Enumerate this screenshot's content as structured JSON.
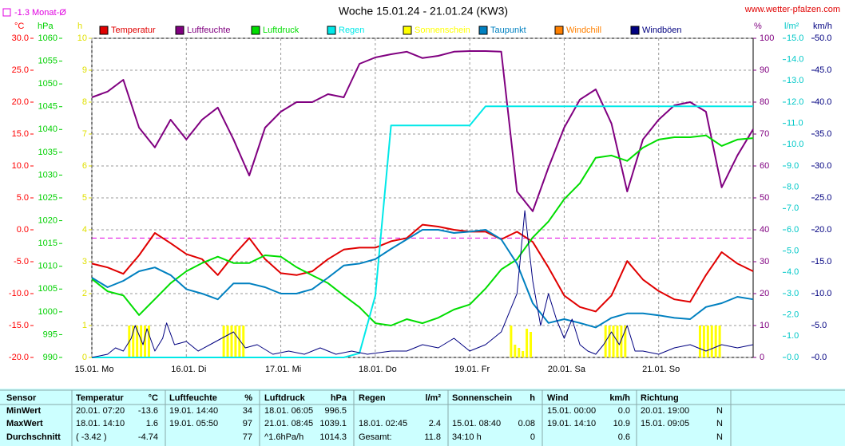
{
  "chart_data": {
    "type": "line",
    "title": "Woche 15.01.24 - 21.01.24 (KW3)",
    "source": "www.wetter-pfalzen.com",
    "grid": true,
    "reference_line": {
      "value": -1.3,
      "label": "-1.3 Monat-Ø",
      "color": "#e000e0"
    },
    "xlim": [
      0,
      168
    ],
    "xticks": [
      {
        "value": 0,
        "label": "15.01. Mo"
      },
      {
        "value": 24,
        "label": "16.01. Di"
      },
      {
        "value": 48,
        "label": "17.01. Mi"
      },
      {
        "value": 72,
        "label": "18.01. Do"
      },
      {
        "value": 96,
        "label": "19.01. Fr"
      },
      {
        "value": 120,
        "label": "20.01. Sa"
      },
      {
        "value": 144,
        "label": "21.01. So"
      }
    ],
    "x": [
      0,
      4,
      8,
      12,
      16,
      20,
      24,
      28,
      32,
      36,
      40,
      44,
      48,
      52,
      56,
      60,
      64,
      68,
      72,
      76,
      80,
      84,
      88,
      92,
      96,
      100,
      104,
      108,
      112,
      116,
      120,
      124,
      128,
      132,
      136,
      140,
      144,
      148,
      152,
      156,
      160,
      164,
      168
    ],
    "ylabel": "°C",
    "ycolor": "#ff0000",
    "ylim": [
      -20,
      30
    ],
    "yticks": [
      {
        "value": 30,
        "label": "30.0"
      },
      {
        "value": 25,
        "label": "25.0"
      },
      {
        "value": 20,
        "label": "20.0"
      },
      {
        "value": 15,
        "label": "15.0"
      },
      {
        "value": 10,
        "label": "10.0"
      },
      {
        "value": 5,
        "label": "5.0"
      },
      {
        "value": 0,
        "label": "0.0"
      },
      {
        "value": -5,
        "label": "-5.0"
      },
      {
        "value": -10,
        "label": "-10.0"
      },
      {
        "value": -15,
        "label": "-15.0"
      },
      {
        "value": -20,
        "label": "-20.0"
      }
    ],
    "y2label": "hPa",
    "y2color": "#00d000",
    "y2lim": [
      990,
      1060
    ],
    "y2ticks": [
      1060,
      1055,
      1050,
      1045,
      1040,
      1035,
      1030,
      1025,
      1020,
      1015,
      1010,
      1005,
      1000,
      995,
      990
    ],
    "y3label": "h",
    "y3color": "#e0e000",
    "y3lim": [
      0,
      10
    ],
    "y3ticks": [
      10,
      9,
      8,
      7,
      6,
      5,
      4,
      3,
      2,
      1,
      0
    ],
    "y4label": "%",
    "y4color": "#800080",
    "y4lim": [
      0,
      100
    ],
    "y4ticks": [
      100,
      90,
      80,
      70,
      60,
      50,
      40,
      30,
      20,
      10,
      0
    ],
    "y5label": "l/m²",
    "y5color": "#00c8c8",
    "y5lim": [
      0,
      15
    ],
    "y5ticks": [
      {
        "value": 15,
        "label": "15.0"
      },
      {
        "value": 14,
        "label": "14.0"
      },
      {
        "value": 13,
        "label": "13.0"
      },
      {
        "value": 12,
        "label": "12.0"
      },
      {
        "value": 11,
        "label": "11.0"
      },
      {
        "value": 10,
        "label": "10.0"
      },
      {
        "value": 9,
        "label": "9.0"
      },
      {
        "value": 8,
        "label": "8.0"
      },
      {
        "value": 7,
        "label": "7.0"
      },
      {
        "value": 6,
        "label": "6.0"
      },
      {
        "value": 5,
        "label": "5.0"
      },
      {
        "value": 4,
        "label": "4.0"
      },
      {
        "value": 3,
        "label": "3.0"
      },
      {
        "value": 2,
        "label": "2.0"
      },
      {
        "value": 1,
        "label": "1.0"
      },
      {
        "value": 0,
        "label": "0.0"
      }
    ],
    "y6label": "km/h",
    "y6color": "#000080",
    "y6lim": [
      0,
      50
    ],
    "y6ticks": [
      {
        "value": 50,
        "label": "50.0"
      },
      {
        "value": 45,
        "label": "45.0"
      },
      {
        "value": 40,
        "label": "40.0"
      },
      {
        "value": 35,
        "label": "35.0"
      },
      {
        "value": 30,
        "label": "30.0"
      },
      {
        "value": 25,
        "label": "25.0"
      },
      {
        "value": 20,
        "label": "20.0"
      },
      {
        "value": 15,
        "label": "15.0"
      },
      {
        "value": 10,
        "label": "10.0"
      },
      {
        "value": 5,
        "label": "5.0"
      },
      {
        "value": 0,
        "label": "0.0"
      }
    ],
    "series": [
      {
        "name": "Temperatur",
        "color": "#e00000",
        "axis": "y",
        "values": [
          -5.3,
          -5.9,
          -6.9,
          -4.0,
          -0.5,
          -2.1,
          -3.8,
          -4.6,
          -7.1,
          -4.0,
          -1.3,
          -4.6,
          -6.8,
          -7.1,
          -6.5,
          -4.6,
          -3.1,
          -2.8,
          -2.8,
          -1.8,
          -1.3,
          0.8,
          0.5,
          0.0,
          -0.3,
          -0.3,
          -1.5,
          -0.3,
          -1.9,
          -5.9,
          -10.3,
          -12.1,
          -12.8,
          -10.3,
          -4.9,
          -7.8,
          -9.6,
          -10.9,
          -11.3,
          -7.1,
          -3.5,
          -5.3,
          -6.5
        ]
      },
      {
        "name": "Luftfeuchte",
        "color": "#800080",
        "axis": "y4",
        "values": [
          81.5,
          83.3,
          87,
          72,
          65.8,
          74.5,
          68.3,
          74.5,
          78.3,
          68.3,
          57,
          72,
          77,
          80,
          80,
          82.5,
          81.5,
          92,
          94,
          95,
          95.8,
          93.8,
          94.5,
          95.8,
          96,
          96,
          95.8,
          52,
          45.8,
          59.5,
          72,
          80.8,
          84,
          73.3,
          52,
          68.3,
          74.5,
          79,
          80,
          77,
          53.3,
          63.3,
          71.5
        ]
      },
      {
        "name": "Luftdruck",
        "color": "#00dd00",
        "axis": "y2",
        "values": [
          1007.2,
          1004.5,
          1003.6,
          999.3,
          1002.8,
          1006.3,
          1008.9,
          1010.7,
          1012.1,
          1010.7,
          1010.7,
          1012.4,
          1012.1,
          1009.8,
          1008.0,
          1006.3,
          1003.6,
          1001.0,
          997.5,
          997.0,
          998.4,
          997.5,
          998.7,
          1000.5,
          1001.6,
          1005.1,
          1009.3,
          1011.5,
          1016.3,
          1019.8,
          1024.7,
          1028.2,
          1033.8,
          1034.3,
          1033.1,
          1036.0,
          1037.8,
          1038.3,
          1038.3,
          1038.7,
          1036.4,
          1037.8,
          1038.1
        ]
      },
      {
        "name": "Regen",
        "color": "#00e8e8",
        "axis": "y5",
        "values": [
          0,
          0,
          0,
          0,
          0,
          0,
          0,
          0,
          0,
          0,
          0,
          0,
          0,
          0,
          0,
          0,
          0,
          0.2,
          2.9,
          10.9,
          10.9,
          10.9,
          10.9,
          10.9,
          10.9,
          11.8,
          11.8,
          11.8,
          11.8,
          11.8,
          11.8,
          11.8,
          11.8,
          11.8,
          11.8,
          11.8,
          11.8,
          11.8,
          11.8,
          11.8,
          11.8,
          11.8,
          11.8
        ]
      },
      {
        "name": "Sonnenschein",
        "color": "#ffff00",
        "axis": "y3",
        "type": "bar",
        "x": [
          9,
          10,
          11,
          12,
          13,
          14,
          33,
          34,
          35,
          36,
          37,
          38,
          106,
          107,
          108,
          109,
          110,
          111,
          130,
          131,
          132,
          133,
          134,
          135,
          154,
          155,
          156,
          157,
          158,
          159
        ],
        "values": [
          1,
          1,
          1,
          1,
          1,
          1,
          1,
          1,
          1,
          1,
          1,
          1,
          1,
          0.4,
          0.3,
          0.2,
          0.9,
          0.8,
          1,
          1,
          1,
          1,
          1,
          1,
          1,
          1,
          1,
          1,
          1,
          1
        ]
      },
      {
        "name": "Taupunkt",
        "color": "#0080c0",
        "axis": "y",
        "values": [
          -7.5,
          -9.0,
          -8.0,
          -6.5,
          -5.9,
          -7.1,
          -9.3,
          -10.0,
          -10.9,
          -8.4,
          -8.4,
          -9.0,
          -10.0,
          -10.0,
          -9.3,
          -7.5,
          -5.6,
          -5.3,
          -4.6,
          -3.0,
          -1.5,
          0.0,
          0.0,
          -0.5,
          -0.3,
          0.0,
          -1.5,
          -5.3,
          -11.5,
          -14.6,
          -14.0,
          -14.6,
          -15.3,
          -13.8,
          -13.1,
          -13.1,
          -13.4,
          -13.8,
          -14.0,
          -12.1,
          -11.5,
          -10.5,
          -10.9
        ]
      },
      {
        "name": "Windchill",
        "color": "#ff8000",
        "axis": "y"
      },
      {
        "name": "Windböen",
        "color": "#000080",
        "axis": "y6",
        "width": 1,
        "x": [
          0,
          4,
          6,
          8,
          10,
          11,
          13,
          14,
          16,
          18,
          19,
          21,
          24,
          27,
          30,
          33,
          36,
          39,
          42,
          46,
          50,
          54,
          58,
          62,
          66,
          70,
          76,
          80,
          84,
          88,
          92,
          96,
          100,
          104,
          108,
          110,
          112,
          114,
          116,
          118,
          120,
          122,
          124,
          126,
          128,
          130,
          132,
          134,
          136,
          138,
          140,
          144,
          148,
          152,
          156,
          160,
          164,
          168
        ],
        "values": [
          0,
          0.5,
          1.5,
          1,
          3,
          5,
          2,
          4.5,
          1,
          3,
          5.4,
          2,
          2.5,
          1,
          2,
          3,
          4,
          1.5,
          2,
          0.5,
          1,
          0.5,
          1.5,
          0.5,
          1,
          0.5,
          1,
          1,
          2,
          1.5,
          3,
          1,
          2,
          4,
          10,
          23,
          12,
          5,
          10,
          6,
          3,
          6,
          2,
          1,
          0.5,
          2,
          4,
          2,
          5,
          1,
          1,
          0.5,
          1.5,
          2,
          1,
          2,
          1.5,
          2
        ]
      }
    ]
  },
  "table": {
    "header": "Sensor",
    "row_labels": [
      "MinWert",
      "MaxWert",
      "Durchschnitt"
    ],
    "groups": [
      {
        "name": "Temperatur",
        "unit": "°C",
        "cells": [
          {
            "time": "20.01. 07:20",
            "value": "-13.6"
          },
          {
            "time": "18.01. 14:10",
            "value": "1.6"
          },
          {
            "time": "( -3.42 )",
            "value": "-4.74"
          }
        ]
      },
      {
        "name": "Luftfeuchte",
        "unit": "%",
        "cells": [
          {
            "time": "19.01. 14:40",
            "value": "34"
          },
          {
            "time": "19.01. 05:50",
            "value": "97"
          },
          {
            "value": "77"
          }
        ]
      },
      {
        "name": "Luftdruck",
        "unit": "hPa",
        "cells": [
          {
            "time": "18.01. 06:05",
            "value": "996.5"
          },
          {
            "time": "21.01. 08:45",
            "value": "1039.1"
          },
          {
            "time": "^1.6hPa/h",
            "value": "1014.3"
          }
        ]
      },
      {
        "name": "Regen",
        "unit": "l/m²",
        "cells": [
          {},
          {
            "time": "18.01. 02:45",
            "value": "2.4"
          },
          {
            "time": "Gesamt:",
            "value": "11.8"
          }
        ]
      },
      {
        "name": "Sonnenschein",
        "unit": "h",
        "cells": [
          {},
          {
            "time": "15.01. 08:40",
            "value": "0.08"
          },
          {
            "time": "34:10 h",
            "value": "0"
          }
        ]
      },
      {
        "name": "Wind",
        "unit": "km/h",
        "cells": [
          {
            "time": "15.01. 00:00",
            "value": "0.0"
          },
          {
            "time": "19.01. 14:10",
            "value": "10.9"
          },
          {
            "value": "0.6"
          }
        ]
      },
      {
        "name": "Richtung",
        "cells": [
          {
            "time": "20.01. 19:00",
            "value": "N"
          },
          {
            "time": "15.01. 09:05",
            "value": "N"
          },
          {
            "value": "N"
          }
        ]
      }
    ]
  }
}
